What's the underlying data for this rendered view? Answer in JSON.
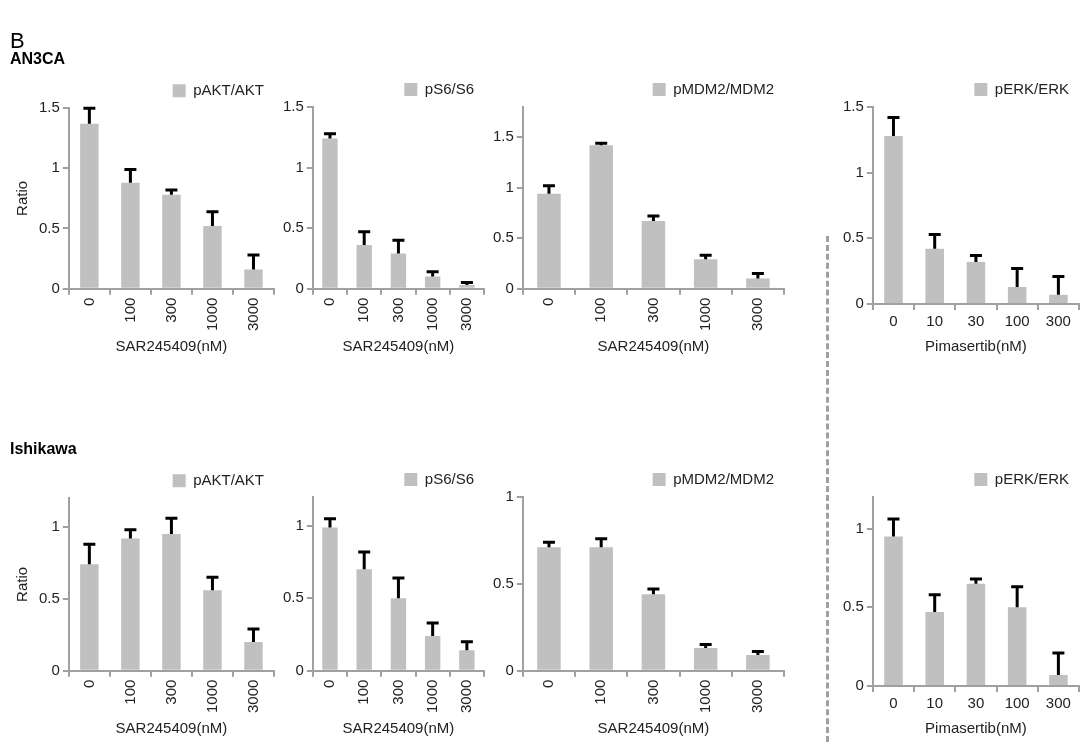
{
  "chart_data": [
    {
      "type": "bar",
      "title": "AN3CA",
      "annotations": [
        "B"
      ],
      "categories": [
        "0",
        "100",
        "300",
        "1000",
        "3000"
      ],
      "xlabel": "SAR245409(nM)",
      "ylabel": "Ratio",
      "ylim": [
        0,
        1.5
      ],
      "yticks": [
        0,
        0.5,
        1,
        1.5
      ],
      "legend": "top right",
      "series": [
        {
          "name": "pAKT/AKT",
          "color": "#c0c0c0",
          "values": [
            1.37,
            0.88,
            0.78,
            0.52,
            0.16
          ],
          "errors": [
            [
              1.37,
              1.5
            ],
            [
              0.88,
              0.99
            ],
            [
              0.78,
              0.82
            ],
            [
              0.52,
              0.64
            ],
            [
              0.16,
              0.28
            ]
          ]
        }
      ]
    },
    {
      "type": "bar",
      "categories": [
        "0",
        "100",
        "300",
        "1000",
        "3000"
      ],
      "xlabel": "SAR245409(nM)",
      "ylim": [
        0,
        1.5
      ],
      "yticks": [
        0,
        0.5,
        1,
        1.5
      ],
      "legend": "top right",
      "series": [
        {
          "name": "pS6/S6",
          "color": "#c0c0c0",
          "values": [
            1.24,
            0.36,
            0.29,
            0.1,
            0.03
          ],
          "errors": [
            [
              1.24,
              1.28
            ],
            [
              0.36,
              0.47
            ],
            [
              0.29,
              0.4
            ],
            [
              0.1,
              0.14
            ],
            [
              0.03,
              0.05
            ]
          ]
        }
      ]
    },
    {
      "type": "bar",
      "categories": [
        "0",
        "100",
        "300",
        "1000",
        "3000"
      ],
      "xlabel": "SAR245409(nM)",
      "ylim": [
        0,
        1.8
      ],
      "yticks": [
        0,
        0.5,
        1,
        1.5
      ],
      "legend": "top right",
      "series": [
        {
          "name": "pMDM2/MDM2",
          "color": "#c0c0c0",
          "values": [
            0.94,
            1.42,
            0.67,
            0.29,
            0.1
          ],
          "errors": [
            [
              0.94,
              1.02
            ],
            [
              1.42,
              1.44
            ],
            [
              0.67,
              0.72
            ],
            [
              0.29,
              0.33
            ],
            [
              0.1,
              0.15
            ]
          ]
        }
      ]
    },
    {
      "type": "bar",
      "categories": [
        "0",
        "10",
        "30",
        "100",
        "300"
      ],
      "xlabel": "Pimasertib(nM)",
      "ylim": [
        0,
        1.5
      ],
      "yticks": [
        0,
        0.5,
        1,
        1.5
      ],
      "legend": "top right",
      "series": [
        {
          "name": "pERK/ERK",
          "color": "#c0c0c0",
          "values": [
            1.28,
            0.42,
            0.32,
            0.13,
            0.07
          ],
          "errors": [
            [
              1.28,
              1.42
            ],
            [
              0.42,
              0.53
            ],
            [
              0.32,
              0.37
            ],
            [
              0.13,
              0.27
            ],
            [
              0.07,
              0.21
            ]
          ]
        }
      ]
    },
    {
      "type": "bar",
      "title": "Ishikawa",
      "categories": [
        "0",
        "100",
        "300",
        "1000",
        "3000"
      ],
      "xlabel": "SAR245409(nM)",
      "ylabel": "Ratio",
      "ylim": [
        0,
        1.2
      ],
      "yticks": [
        0,
        0.5,
        1
      ],
      "legend": "top right",
      "series": [
        {
          "name": "pAKT/AKT",
          "color": "#c0c0c0",
          "values": [
            0.74,
            0.92,
            0.95,
            0.56,
            0.2
          ],
          "errors": [
            [
              0.74,
              0.88
            ],
            [
              0.92,
              0.98
            ],
            [
              0.95,
              1.06
            ],
            [
              0.56,
              0.65
            ],
            [
              0.2,
              0.29
            ]
          ]
        }
      ]
    },
    {
      "type": "bar",
      "categories": [
        "0",
        "100",
        "300",
        "1000",
        "3000"
      ],
      "xlabel": "SAR245409(nM)",
      "ylim": [
        0,
        1.2
      ],
      "yticks": [
        0,
        0.5,
        1
      ],
      "legend": "top right",
      "series": [
        {
          "name": "pS6/S6",
          "color": "#c0c0c0",
          "values": [
            0.99,
            0.7,
            0.5,
            0.24,
            0.14
          ],
          "errors": [
            [
              0.99,
              1.05
            ],
            [
              0.7,
              0.82
            ],
            [
              0.5,
              0.64
            ],
            [
              0.24,
              0.33
            ],
            [
              0.14,
              0.2
            ]
          ]
        }
      ]
    },
    {
      "type": "bar",
      "categories": [
        "0",
        "100",
        "300",
        "1000",
        "3000"
      ],
      "xlabel": "SAR245409(nM)",
      "ylim": [
        0,
        1
      ],
      "yticks": [
        0,
        0.5,
        1
      ],
      "legend": "top right",
      "series": [
        {
          "name": "pMDM2/MDM2",
          "color": "#c0c0c0",
          "values": [
            0.71,
            0.71,
            0.44,
            0.13,
            0.09
          ],
          "errors": [
            [
              0.71,
              0.74
            ],
            [
              0.71,
              0.76
            ],
            [
              0.44,
              0.47
            ],
            [
              0.13,
              0.15
            ],
            [
              0.09,
              0.11
            ]
          ]
        }
      ]
    },
    {
      "type": "bar",
      "categories": [
        "0",
        "10",
        "30",
        "100",
        "300"
      ],
      "xlabel": "Pimasertib(nM)",
      "ylim": [
        0,
        1.2
      ],
      "yticks": [
        0,
        0.5,
        1
      ],
      "legend": "top right",
      "series": [
        {
          "name": "pERK/ERK",
          "color": "#c0c0c0",
          "values": [
            0.95,
            0.47,
            0.65,
            0.5,
            0.07
          ],
          "errors": [
            [
              0.95,
              1.06
            ],
            [
              0.47,
              0.58
            ],
            [
              0.65,
              0.68
            ],
            [
              0.5,
              0.63
            ],
            [
              0.07,
              0.21
            ]
          ]
        }
      ]
    }
  ]
}
